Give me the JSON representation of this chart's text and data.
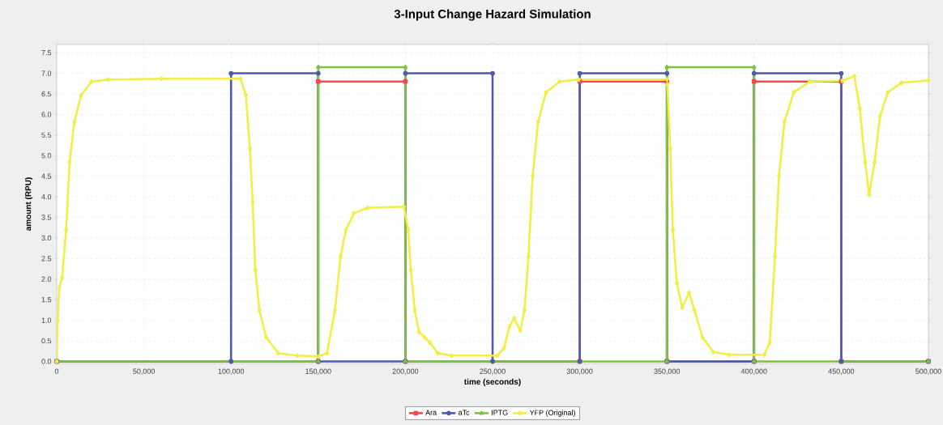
{
  "chart_data": {
    "type": "line",
    "title": "3-Input Change Hazard Simulation",
    "xlabel": "time (seconds)",
    "ylabel": "amount (RPU)",
    "xlim": [
      0,
      500000
    ],
    "ylim": [
      -0.05,
      7.7
    ],
    "xticks": [
      0,
      {
        "value": 50000,
        "label": "50,000"
      },
      {
        "value": 100000,
        "label": "100,000"
      },
      {
        "value": 150000,
        "label": "150,000"
      },
      {
        "value": 200000,
        "label": "200,000"
      },
      {
        "value": 250000,
        "label": "250,000"
      },
      {
        "value": 300000,
        "label": "300,000"
      },
      {
        "value": 350000,
        "label": "350,000"
      },
      {
        "value": 400000,
        "label": "400,000"
      },
      {
        "value": 450000,
        "label": "450,000"
      },
      {
        "value": 500000,
        "label": "500,000"
      }
    ],
    "yticks": [
      {
        "value": 0,
        "label": "0.0"
      },
      0.5,
      {
        "value": 1,
        "label": "1.0"
      },
      1.5,
      {
        "value": 2,
        "label": "2.0"
      },
      2.5,
      {
        "value": 3,
        "label": "3.0"
      },
      3.5,
      {
        "value": 4,
        "label": "4.0"
      },
      4.5,
      {
        "value": 5,
        "label": "5.0"
      },
      5.5,
      {
        "value": 6,
        "label": "6.0"
      },
      6.5,
      {
        "value": 7,
        "label": "7.0"
      },
      7.5
    ],
    "grid": true,
    "legend": "bottom",
    "series": [
      {
        "name": "Ara",
        "color": "#f04c4c",
        "marker": "square",
        "x": [
          0,
          150000,
          150000,
          200000,
          200000,
          300000,
          300000,
          350000,
          350000,
          400000,
          400000,
          450000,
          450000,
          500000
        ],
        "values": [
          0,
          0,
          6.8,
          6.8,
          0,
          0,
          6.8,
          6.8,
          0,
          0,
          6.8,
          6.8,
          0,
          0
        ]
      },
      {
        "name": "aTc",
        "color": "#4e5aad",
        "marker": "circle",
        "x": [
          0,
          100000,
          100000,
          150000,
          150000,
          200000,
          200000,
          250000,
          250000,
          300000,
          300000,
          350000,
          350000,
          400000,
          400000,
          450000,
          450000,
          500000
        ],
        "values": [
          0,
          0,
          7.0,
          7.0,
          0,
          0,
          7.0,
          7.0,
          0,
          0,
          7.0,
          7.0,
          0,
          0,
          7.0,
          7.0,
          0,
          0
        ]
      },
      {
        "name": "IPTG",
        "color": "#7dc242",
        "marker": "triangle",
        "x": [
          0,
          150000,
          150000,
          200000,
          200000,
          350000,
          350000,
          400000,
          400000,
          500000
        ],
        "values": [
          0,
          0,
          7.15,
          7.15,
          0,
          0,
          7.15,
          7.15,
          0,
          0
        ]
      },
      {
        "name": "YFP (Original)",
        "color": "#f2ee46",
        "marker": "diamond",
        "x": [
          0,
          500,
          1500,
          3100,
          5400,
          7400,
          10100,
          14000,
          20000,
          29500,
          60000,
          105400,
          108500,
          110800,
          112400,
          113900,
          116300,
          120100,
          127100,
          138000,
          150000,
          155000,
          159600,
          162800,
          165900,
          170500,
          178300,
          199200,
          201600,
          203100,
          205400,
          207800,
          210900,
          214000,
          218600,
          226400,
          252800,
          256600,
          259700,
          262400,
          265900,
          268300,
          270600,
          273000,
          276100,
          280700,
          288500,
          299400,
          350000,
          350300,
          351900,
          353400,
          355700,
          358800,
          362700,
          365800,
          370400,
          376600,
          385800,
          405900,
          409000,
          412000,
          414300,
          417400,
          422800,
          432100,
          450600,
          457500,
          460600,
          463700,
          466000,
          469100,
          472200,
          476800,
          484500,
          500000
        ],
        "values": [
          0,
          1.0,
          1.8,
          2.03,
          3.2,
          4.84,
          5.82,
          6.47,
          6.8,
          6.85,
          6.87,
          6.87,
          6.47,
          5.17,
          3.86,
          2.22,
          1.24,
          0.59,
          0.2,
          0.14,
          0.12,
          0.2,
          1.24,
          2.55,
          3.2,
          3.6,
          3.73,
          3.76,
          3.2,
          2.22,
          1.24,
          0.72,
          0.59,
          0.46,
          0.2,
          0.14,
          0.14,
          0.33,
          0.85,
          1.05,
          0.75,
          1.24,
          2.55,
          4.51,
          5.82,
          6.54,
          6.8,
          6.85,
          6.85,
          6.74,
          5.17,
          3.2,
          1.9,
          1.31,
          1.67,
          1.24,
          0.59,
          0.23,
          0.16,
          0.16,
          0.46,
          2.55,
          4.51,
          5.82,
          6.54,
          6.8,
          6.82,
          6.93,
          6.15,
          4.84,
          4.05,
          4.84,
          5.95,
          6.54,
          6.77,
          6.83
        ]
      }
    ]
  }
}
